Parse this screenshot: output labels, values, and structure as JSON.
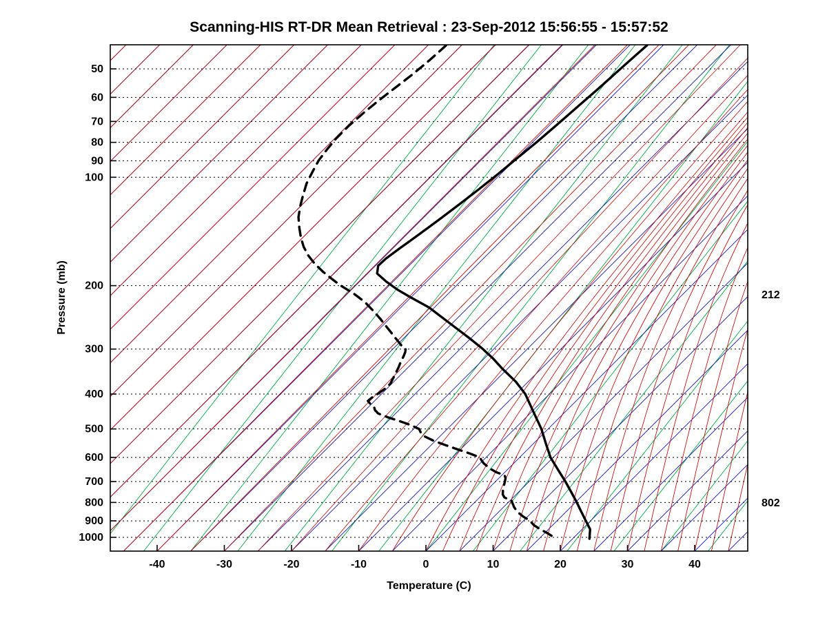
{
  "chart_data": {
    "type": "line",
    "variant": "skew-t-log-p-sounding",
    "title": "Scanning-HIS RT-DR Mean Retrieval : 23-Sep-2012 15:56:55 - 15:57:52",
    "xlabel": "Temperature (C)",
    "ylabel": "Pressure (mb)",
    "x_ticks": [
      -40,
      -30,
      -20,
      -10,
      0,
      10,
      20,
      30,
      40
    ],
    "pressure_ticks": [
      50,
      60,
      70,
      80,
      90,
      100,
      200,
      300,
      400,
      500,
      600,
      700,
      800,
      900,
      1000
    ],
    "xlim": [
      -47,
      48
    ],
    "ylim": [
      43,
      1092
    ],
    "grid": true,
    "legend": "none",
    "right_labels": [
      {
        "pressure": 212,
        "text": "212"
      },
      {
        "pressure": 802,
        "text": "802"
      }
    ],
    "background": {
      "isotherms": {
        "color": "#1515b0",
        "start": -120,
        "end": 45,
        "step": 5
      },
      "mixing_lines": {
        "color": "#00a844",
        "start": -49,
        "end": 43,
        "step": 7,
        "slope": 0.785
      },
      "adiabats": {
        "color": "#c01414",
        "cold_start": -120,
        "cold_end": 0,
        "cold_step": 5,
        "warm_start": 2.5,
        "warm_end": 45,
        "warm_step": 2.5
      },
      "pressure_grid_color": "#000000"
    },
    "series": [
      {
        "name": "temperature",
        "style": "solid",
        "color": "#000000",
        "points": [
          [
            1009,
            22.5
          ],
          [
            1000,
            22.3
          ],
          [
            950,
            21.2
          ],
          [
            900,
            19.3
          ],
          [
            850,
            17.3
          ],
          [
            800,
            15.2
          ],
          [
            750,
            12.9
          ],
          [
            700,
            10.4
          ],
          [
            650,
            7.6
          ],
          [
            600,
            4.6
          ],
          [
            550,
            1.9
          ],
          [
            500,
            -1.0
          ],
          [
            450,
            -4.6
          ],
          [
            400,
            -8.6
          ],
          [
            370,
            -11.8
          ],
          [
            340,
            -15.8
          ],
          [
            320,
            -18.5
          ],
          [
            300,
            -21.6
          ],
          [
            280,
            -25.2
          ],
          [
            260,
            -29.2
          ],
          [
            245,
            -32.4
          ],
          [
            230,
            -35.8
          ],
          [
            215,
            -40.2
          ],
          [
            205,
            -43.2
          ],
          [
            195,
            -46.0
          ],
          [
            185,
            -48.6
          ],
          [
            176,
            -49.6
          ],
          [
            168,
            -49.5
          ],
          [
            158,
            -49.0
          ],
          [
            148,
            -48.4
          ],
          [
            138,
            -47.8
          ],
          [
            128,
            -47.2
          ],
          [
            118,
            -46.6
          ],
          [
            108,
            -46.0
          ],
          [
            98,
            -45.4
          ],
          [
            88,
            -44.9
          ],
          [
            80,
            -44.4
          ],
          [
            72,
            -44.0
          ],
          [
            64,
            -43.6
          ],
          [
            57,
            -43.2
          ],
          [
            51,
            -42.9
          ],
          [
            46,
            -42.6
          ],
          [
            43,
            -42.4
          ]
        ]
      },
      {
        "name": "dew_point",
        "style": "dashed",
        "color": "#000000",
        "points": [
          [
            990,
            16.4
          ],
          [
            975,
            15.5
          ],
          [
            950,
            13.8
          ],
          [
            925,
            12.2
          ],
          [
            900,
            11.0
          ],
          [
            875,
            9.3
          ],
          [
            850,
            7.8
          ],
          [
            825,
            6.6
          ],
          [
            805,
            5.8
          ],
          [
            790,
            5.2
          ],
          [
            782,
            4.4
          ],
          [
            775,
            3.7
          ],
          [
            760,
            3.0
          ],
          [
            740,
            2.4
          ],
          [
            720,
            1.9
          ],
          [
            700,
            1.4
          ],
          [
            685,
            1.0
          ],
          [
            672,
            0.4
          ],
          [
            660,
            -1.2
          ],
          [
            648,
            -2.4
          ],
          [
            636,
            -3.4
          ],
          [
            624,
            -4.4
          ],
          [
            612,
            -5.2
          ],
          [
            600,
            -5.9
          ],
          [
            585,
            -8.0
          ],
          [
            570,
            -10.4
          ],
          [
            555,
            -12.8
          ],
          [
            540,
            -15.2
          ],
          [
            525,
            -17.2
          ],
          [
            512,
            -18.4
          ],
          [
            500,
            -19.2
          ],
          [
            488,
            -21.0
          ],
          [
            476,
            -23.2
          ],
          [
            464,
            -25.6
          ],
          [
            453,
            -27.6
          ],
          [
            443,
            -28.6
          ],
          [
            434,
            -29.2
          ],
          [
            426,
            -30.2
          ],
          [
            418,
            -31.0
          ],
          [
            410,
            -30.9
          ],
          [
            400,
            -30.6
          ],
          [
            388,
            -30.3
          ],
          [
            375,
            -30.2
          ],
          [
            362,
            -30.6
          ],
          [
            350,
            -31.0
          ],
          [
            338,
            -31.4
          ],
          [
            326,
            -31.9
          ],
          [
            315,
            -32.3
          ],
          [
            306,
            -32.7
          ],
          [
            300,
            -33.1
          ],
          [
            295,
            -34.0
          ],
          [
            288,
            -35.0
          ],
          [
            280,
            -36.2
          ],
          [
            270,
            -37.7
          ],
          [
            258,
            -39.6
          ],
          [
            246,
            -41.6
          ],
          [
            234,
            -43.8
          ],
          [
            222,
            -46.2
          ],
          [
            210,
            -49.2
          ],
          [
            200,
            -52.2
          ],
          [
            192,
            -54.4
          ],
          [
            183,
            -56.9
          ],
          [
            174,
            -59.3
          ],
          [
            165,
            -61.5
          ],
          [
            156,
            -63.5
          ],
          [
            147,
            -65.3
          ],
          [
            138,
            -67.0
          ],
          [
            129,
            -68.7
          ],
          [
            120,
            -70.1
          ],
          [
            112,
            -71.3
          ],
          [
            104,
            -72.5
          ],
          [
            97,
            -73.3
          ],
          [
            90,
            -74.1
          ],
          [
            84,
            -74.5
          ],
          [
            78,
            -74.8
          ],
          [
            72,
            -74.8
          ],
          [
            66,
            -74.5
          ],
          [
            61,
            -74.1
          ],
          [
            56,
            -73.5
          ],
          [
            52,
            -73.0
          ],
          [
            48,
            -72.6
          ],
          [
            45,
            -72.4
          ],
          [
            43,
            -72.3
          ]
        ]
      }
    ]
  }
}
